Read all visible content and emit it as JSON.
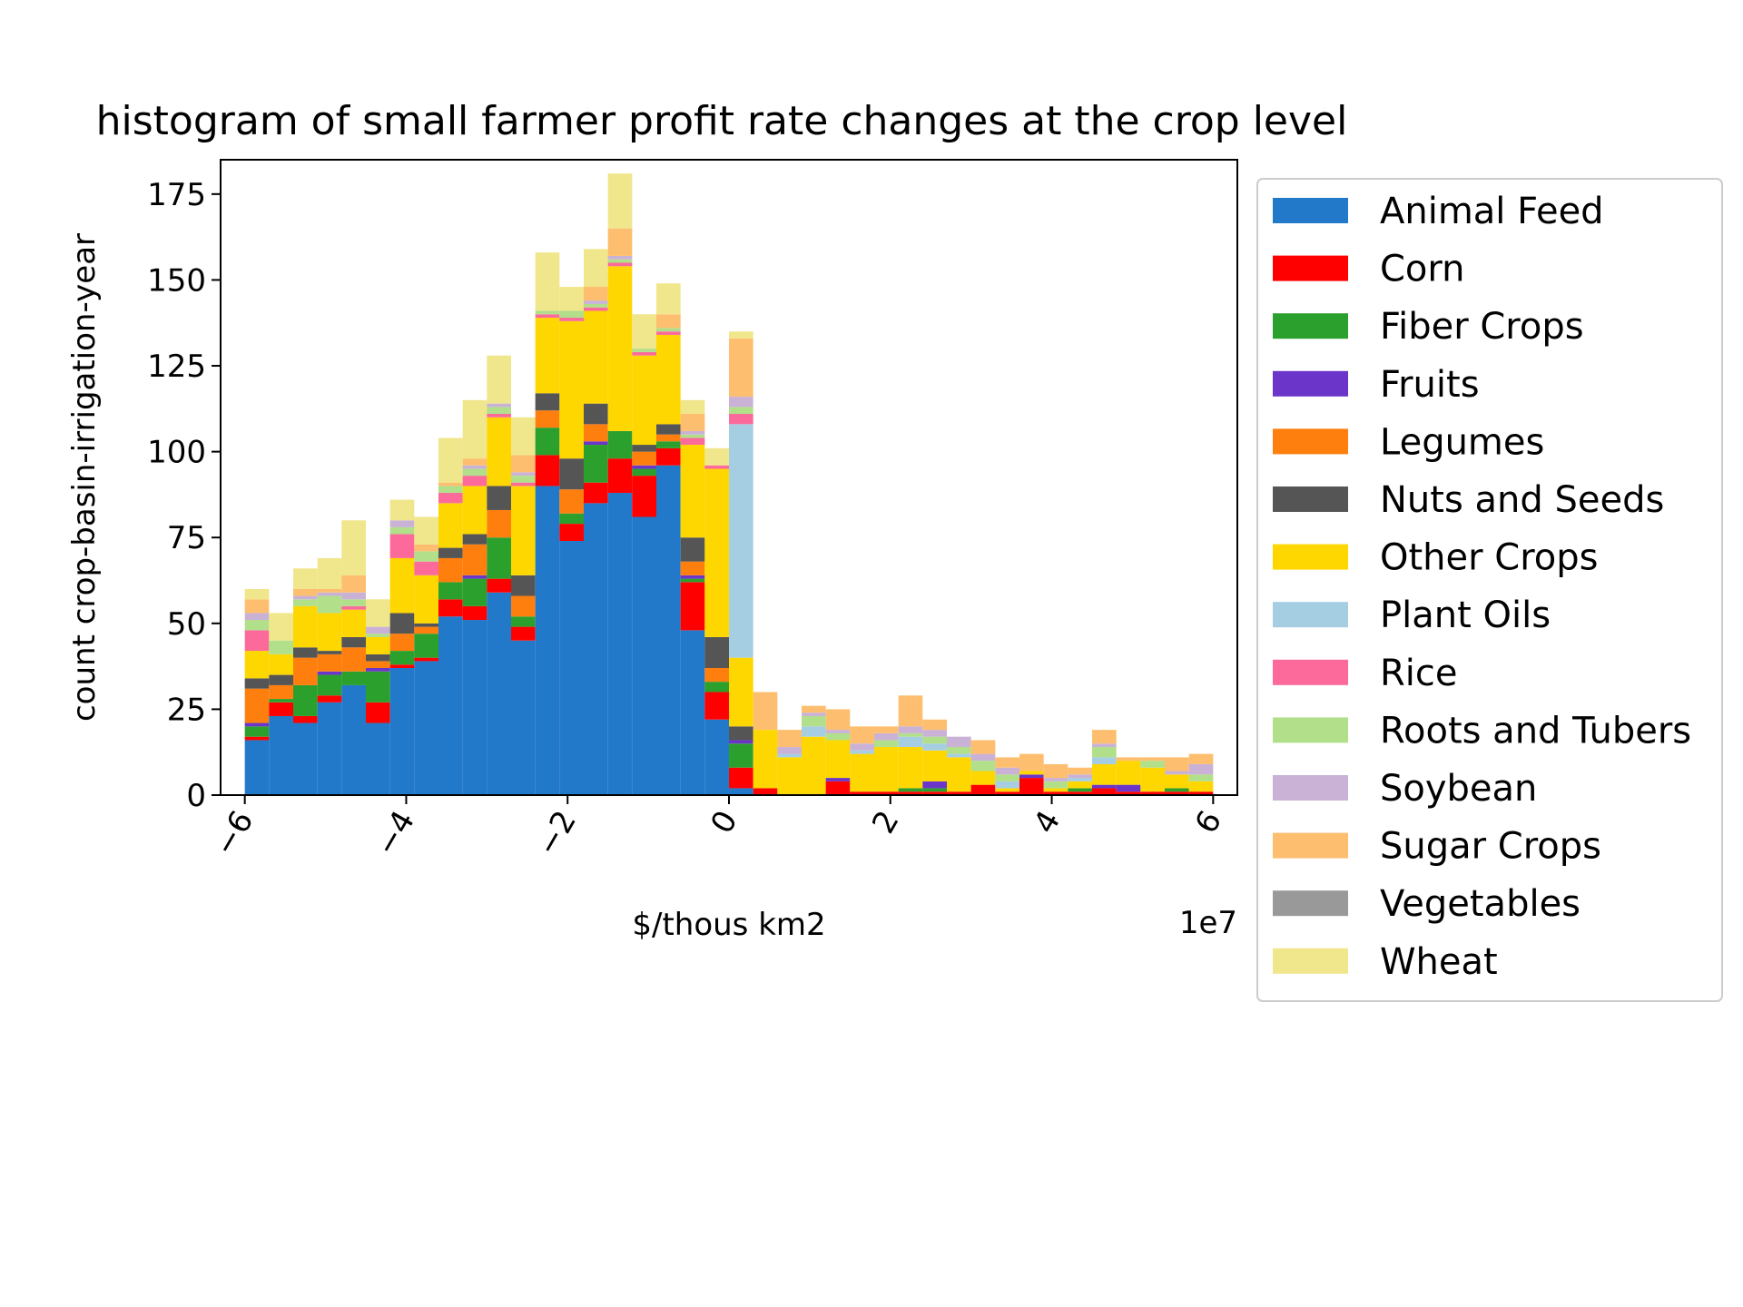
{
  "chart_data": {
    "type": "bar",
    "stacked": true,
    "histogram": true,
    "title": "histogram of small farmer profit rate changes at the crop level",
    "xlabel": "$/thous km2",
    "ylabel": "count crop-basin-irrigation-year",
    "x_offset_text": "1e7",
    "x_unit_multiplier": 10000000,
    "xlim": [
      -6.3,
      6.3
    ],
    "ylim": [
      0,
      185
    ],
    "x_ticks": [
      -6,
      -4,
      -2,
      0,
      2,
      4,
      6
    ],
    "x_tick_labels": [
      "−6",
      "−4",
      "−2",
      "0",
      "2",
      "4",
      "6"
    ],
    "y_ticks": [
      0,
      25,
      50,
      75,
      100,
      125,
      150,
      175
    ],
    "y_tick_labels": [
      "0",
      "25",
      "50",
      "75",
      "100",
      "125",
      "150",
      "175"
    ],
    "grid": false,
    "legend_position": "right, outside plot",
    "bin_edges": [
      -6.0,
      -5.7,
      -5.4,
      -5.1,
      -4.8,
      -4.5,
      -4.2,
      -3.9,
      -3.6,
      -3.3,
      -3.0,
      -2.7,
      -2.4,
      -2.1,
      -1.8,
      -1.5,
      -1.2,
      -0.9,
      -0.6,
      -0.3,
      0.0,
      0.3,
      0.6,
      0.9,
      1.2,
      1.5,
      1.8,
      2.1,
      2.4,
      2.7,
      3.0,
      3.3,
      3.6,
      3.9,
      4.2,
      4.5,
      4.8,
      5.1,
      5.4,
      5.7,
      6.0
    ],
    "series": [
      {
        "name": "Animal Feed",
        "color": "#2379c9",
        "values": [
          16,
          23,
          21,
          27,
          32,
          21,
          37,
          39,
          52,
          51,
          59,
          45,
          90,
          74,
          85,
          88,
          81,
          96,
          48,
          22,
          2,
          0,
          0,
          0,
          0,
          0,
          0,
          0,
          0,
          0,
          0,
          0,
          0,
          0,
          0,
          0,
          0,
          0,
          0,
          0
        ]
      },
      {
        "name": "Corn",
        "color": "#ff0000",
        "values": [
          1,
          4,
          2,
          2,
          0,
          6,
          1,
          1,
          5,
          4,
          4,
          4,
          9,
          5,
          6,
          10,
          12,
          5,
          14,
          8,
          6,
          2,
          0,
          0,
          4,
          1,
          1,
          1,
          1,
          1,
          3,
          1,
          5,
          1,
          1,
          2,
          1,
          1,
          1,
          1
        ]
      },
      {
        "name": "Fiber Crops",
        "color": "#2ca02c",
        "values": [
          3,
          1,
          9,
          6,
          4,
          9,
          4,
          7,
          5,
          8,
          12,
          3,
          8,
          3,
          11,
          8,
          2,
          2,
          1,
          3,
          7,
          0,
          0,
          0,
          0,
          0,
          0,
          1,
          1,
          0,
          0,
          0,
          0,
          0,
          1,
          0,
          0,
          0,
          1,
          0
        ]
      },
      {
        "name": "Fruits",
        "color": "#6a35c8",
        "values": [
          1,
          0,
          0,
          1,
          0,
          1,
          0,
          0,
          0,
          1,
          0,
          0,
          0,
          0,
          1,
          0,
          1,
          0,
          1,
          0,
          1,
          0,
          0,
          0,
          1,
          0,
          0,
          0,
          2,
          0,
          0,
          0,
          1,
          0,
          0,
          1,
          2,
          0,
          0,
          0
        ]
      },
      {
        "name": "Legumes",
        "color": "#ff7f0e",
        "values": [
          10,
          4,
          8,
          5,
          7,
          2,
          5,
          2,
          7,
          9,
          8,
          6,
          5,
          7,
          5,
          0,
          4,
          2,
          4,
          4,
          0,
          0,
          0,
          0,
          0,
          0,
          0,
          0,
          0,
          0,
          0,
          0,
          0,
          0,
          0,
          0,
          0,
          0,
          0,
          0
        ]
      },
      {
        "name": "Nuts and Seeds",
        "color": "#555555",
        "values": [
          3,
          3,
          3,
          1,
          3,
          2,
          6,
          1,
          3,
          3,
          7,
          6,
          5,
          9,
          6,
          0,
          2,
          3,
          7,
          9,
          4,
          0,
          0,
          0,
          0,
          0,
          0,
          0,
          0,
          0,
          0,
          0,
          0,
          0,
          0,
          0,
          0,
          0,
          0,
          0
        ]
      },
      {
        "name": "Other Crops",
        "color": "#ffd700",
        "values": [
          8,
          6,
          12,
          11,
          8,
          5,
          16,
          14,
          13,
          14,
          20,
          26,
          22,
          40,
          27,
          48,
          26,
          26,
          27,
          49,
          20,
          17,
          11,
          17,
          11,
          11,
          13,
          12,
          9,
          10,
          4,
          1,
          1,
          1,
          2,
          6,
          7,
          7,
          4,
          3
        ]
      },
      {
        "name": "Plant Oils",
        "color": "#a6cee3",
        "values": [
          0,
          0,
          0,
          0,
          0,
          0,
          0,
          0,
          0,
          0,
          0,
          0,
          0,
          0,
          0,
          0,
          0,
          0,
          0,
          0,
          68,
          0,
          1,
          3,
          0,
          1,
          0,
          3,
          2,
          1,
          0,
          2,
          0,
          0,
          1,
          2,
          0,
          0,
          0,
          0
        ]
      },
      {
        "name": "Rice",
        "color": "#fb6a9a",
        "values": [
          6,
          0,
          0,
          0,
          1,
          0,
          7,
          4,
          3,
          3,
          1,
          1,
          1,
          1,
          1,
          1,
          1,
          1,
          2,
          1,
          3,
          0,
          0,
          0,
          0,
          0,
          0,
          0,
          0,
          0,
          0,
          0,
          0,
          0,
          0,
          0,
          0,
          0,
          0,
          0
        ]
      },
      {
        "name": "Roots and Tubers",
        "color": "#b2df8a",
        "values": [
          3,
          4,
          2,
          5,
          2,
          1,
          2,
          3,
          2,
          2,
          2,
          2,
          1,
          2,
          1,
          1,
          1,
          1,
          1,
          0,
          2,
          0,
          0,
          3,
          2,
          0,
          2,
          1,
          2,
          2,
          3,
          2,
          0,
          2,
          0,
          3,
          0,
          2,
          0,
          2
        ]
      },
      {
        "name": "Soybean",
        "color": "#cab2d6",
        "values": [
          2,
          0,
          1,
          1,
          2,
          2,
          2,
          0,
          0,
          1,
          1,
          1,
          0,
          0,
          1,
          1,
          0,
          0,
          1,
          0,
          3,
          0,
          2,
          1,
          1,
          2,
          2,
          2,
          2,
          3,
          2,
          2,
          0,
          1,
          1,
          1,
          0,
          0,
          1,
          3
        ]
      },
      {
        "name": "Sugar Crops",
        "color": "#fdbf6f",
        "values": [
          4,
          0,
          2,
          1,
          5,
          0,
          0,
          2,
          1,
          2,
          0,
          5,
          0,
          0,
          4,
          8,
          0,
          4,
          5,
          0,
          17,
          11,
          5,
          2,
          6,
          5,
          2,
          9,
          3,
          0,
          4,
          3,
          5,
          4,
          2,
          4,
          1,
          1,
          4,
          3
        ]
      },
      {
        "name": "Vegetables",
        "color": "#999999",
        "values": [
          0,
          0,
          0,
          0,
          0,
          0,
          0,
          0,
          0,
          0,
          0,
          0,
          0,
          0,
          0,
          0,
          0,
          0,
          0,
          0,
          0,
          0,
          0,
          0,
          0,
          0,
          0,
          0,
          0,
          0,
          0,
          0,
          0,
          0,
          0,
          0,
          0,
          0,
          0,
          0
        ]
      },
      {
        "name": "Wheat",
        "color": "#f0e68c",
        "values": [
          3,
          8,
          6,
          9,
          16,
          8,
          6,
          8,
          13,
          17,
          14,
          11,
          17,
          7,
          11,
          16,
          10,
          9,
          4,
          5,
          2,
          0,
          0,
          0,
          0,
          0,
          0,
          0,
          0,
          0,
          0,
          0,
          0,
          0,
          0,
          0,
          0,
          0,
          0,
          0
        ]
      }
    ]
  }
}
